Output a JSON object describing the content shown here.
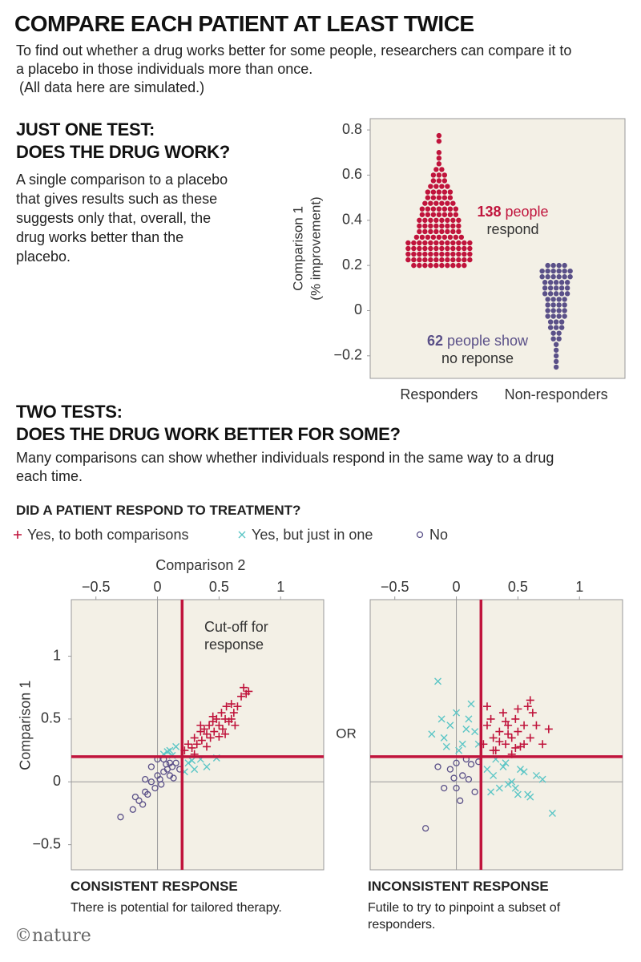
{
  "header": {
    "title": "COMPARE EACH PATIENT AT LEAST TWICE",
    "intro": "To find out whether a drug works better for some people, researchers can compare it to a placebo in those individuals more than once.",
    "note": "(All data here are simulated.)"
  },
  "section_1": {
    "heading": [
      "JUST ONE TEST:",
      "DOES THE DRUG WORK?"
    ],
    "text": "A single comparison to a placebo that gives results such as these suggests only that, overall, the drug works better than the placebo."
  },
  "section_2": {
    "heading": [
      "TWO TESTS:",
      "DOES THE DRUG WORK BETTER FOR SOME?"
    ],
    "text": "Many comparisons can show whether individuals respond in the same way to a drug each time.",
    "legend_title": "DID A PATIENT RESPOND TO TREATMENT?",
    "or_label": "OR"
  },
  "chart_data": [
    {
      "type": "beeswarm",
      "ylabel": [
        "Comparison 1",
        "(% improvement)"
      ],
      "categories": [
        "Responders",
        "Non-responders"
      ],
      "ylim": [
        -0.3,
        0.85
      ],
      "yticks": [
        0.8,
        0.6,
        0.4,
        0.2,
        0,
        {
          "value": -0.2,
          "label": "−0.2"
        }
      ],
      "series": [
        {
          "color": "#c0143c",
          "levels": [
            0.2,
            0.225,
            0.25,
            0.275,
            0.3,
            0.325,
            0.35,
            0.375,
            0.4,
            0.425,
            0.45,
            0.475,
            0.5,
            0.525,
            0.55,
            0.575,
            0.6,
            0.625,
            0.65,
            0.675,
            0.7,
            0.75,
            0.775
          ],
          "counts": [
            10,
            12,
            12,
            12,
            12,
            9,
            8,
            8,
            8,
            7,
            7,
            6,
            5,
            5,
            4,
            3,
            3,
            2,
            1,
            1,
            1,
            1,
            1
          ],
          "annotation": {
            "count": 138,
            "text": [
              "people",
              "respond"
            ]
          }
        },
        {
          "color": "#5a5088",
          "levels": [
            0.2,
            0.175,
            0.15,
            0.125,
            0.1,
            0.075,
            0.05,
            0.025,
            0,
            -0.025,
            -0.05,
            -0.075,
            -0.1,
            -0.125,
            -0.15,
            -0.175,
            -0.2,
            -0.225,
            -0.25
          ],
          "counts": [
            4,
            6,
            6,
            5,
            5,
            5,
            4,
            4,
            4,
            4,
            3,
            3,
            2,
            2,
            1,
            1,
            1,
            1,
            1
          ],
          "annotation": {
            "count": 62,
            "text": [
              "people show",
              "no reponse"
            ]
          }
        }
      ]
    },
    {
      "type": "scatter",
      "xlabel": "Comparison 2",
      "ylabel": "Comparison 1",
      "xlim": [
        -0.7,
        1.35
      ],
      "ylim": [
        -0.7,
        1.45
      ],
      "xticks": [
        {
          "value": -0.5,
          "label": "−0.5"
        },
        0,
        0.5,
        1
      ],
      "yticks": [
        {
          "value": -0.5,
          "label": "−0.5"
        },
        0,
        0.5,
        1
      ],
      "zero_lines": true,
      "cutoff": {
        "value": 0.2,
        "color": "#c0143c",
        "label": [
          "Cut-off for",
          "response"
        ]
      },
      "caption": {
        "title": "CONSISTENT RESPONSE",
        "text": "There is potential for tailored therapy."
      },
      "series": [
        {
          "name": "Yes, to both comparisons",
          "marker": "plus",
          "color": "#c0143c",
          "x": [
            0.22,
            0.25,
            0.28,
            0.3,
            0.32,
            0.35,
            0.36,
            0.38,
            0.4,
            0.42,
            0.43,
            0.45,
            0.46,
            0.48,
            0.5,
            0.52,
            0.53,
            0.55,
            0.56,
            0.58,
            0.6,
            0.62,
            0.63,
            0.65,
            0.68,
            0.7,
            0.72,
            0.74,
            0.3,
            0.4,
            0.5,
            0.45,
            0.35,
            0.55,
            0.6
          ],
          "y": [
            0.25,
            0.3,
            0.27,
            0.35,
            0.3,
            0.4,
            0.33,
            0.42,
            0.38,
            0.45,
            0.35,
            0.48,
            0.4,
            0.5,
            0.45,
            0.55,
            0.42,
            0.5,
            0.6,
            0.48,
            0.62,
            0.55,
            0.45,
            0.6,
            0.68,
            0.75,
            0.7,
            0.72,
            0.22,
            0.28,
            0.36,
            0.52,
            0.45,
            0.38,
            0.5
          ]
        },
        {
          "name": "Yes, but just in one",
          "marker": "x",
          "color": "#5cc6c6",
          "x": [
            0.05,
            0.1,
            0.15,
            0.12,
            0.08,
            0.25,
            0.3,
            0.35,
            0.4,
            0.48,
            0.22,
            0.28
          ],
          "y": [
            0.22,
            0.25,
            0.28,
            0.21,
            0.24,
            0.15,
            0.1,
            0.18,
            0.12,
            0.19,
            0.08,
            0.17
          ]
        },
        {
          "name": "No",
          "marker": "circle",
          "color": "#5a5088",
          "x": [
            -0.3,
            -0.2,
            -0.15,
            -0.12,
            -0.1,
            -0.08,
            -0.05,
            -0.02,
            0,
            0.02,
            0.05,
            0.08,
            0.1,
            0.12,
            0.15,
            0.18,
            -0.05,
            0,
            0.05,
            0.1,
            -0.18,
            0.03,
            0.13,
            -0.1,
            0.07
          ],
          "y": [
            -0.28,
            -0.22,
            -0.15,
            -0.18,
            -0.08,
            -0.1,
            0,
            -0.05,
            0.05,
            0.02,
            0.08,
            0.1,
            0.05,
            0.12,
            0.15,
            0.1,
            0.12,
            0.18,
            0.18,
            0.15,
            -0.12,
            -0.02,
            0.03,
            0.02,
            0.14
          ]
        }
      ]
    },
    {
      "type": "scatter",
      "xlim": [
        -0.7,
        1.35
      ],
      "ylim": [
        -0.7,
        1.45
      ],
      "xticks": [
        {
          "value": -0.5,
          "label": "−0.5"
        },
        0,
        0.5,
        1
      ],
      "zero_lines": true,
      "cutoff": {
        "value": 0.2,
        "color": "#c0143c"
      },
      "caption": {
        "title": "INCONSISTENT RESPONSE",
        "text": "Futile to try to pinpoint a subset of responders."
      },
      "series": [
        {
          "marker": "plus",
          "color": "#c0143c",
          "x": [
            0.22,
            0.25,
            0.28,
            0.3,
            0.32,
            0.35,
            0.38,
            0.4,
            0.42,
            0.45,
            0.48,
            0.5,
            0.52,
            0.55,
            0.58,
            0.6,
            0.62,
            0.65,
            0.7,
            0.75,
            0.25,
            0.3,
            0.35,
            0.4,
            0.45,
            0.5,
            0.55,
            0.6,
            0.42,
            0.48
          ],
          "y": [
            0.3,
            0.45,
            0.5,
            0.35,
            0.25,
            0.4,
            0.55,
            0.3,
            0.45,
            0.35,
            0.5,
            0.4,
            0.28,
            0.45,
            0.6,
            0.35,
            0.55,
            0.45,
            0.3,
            0.42,
            0.6,
            0.25,
            0.32,
            0.48,
            0.22,
            0.58,
            0.3,
            0.65,
            0.38,
            0.27
          ]
        },
        {
          "marker": "x",
          "color": "#5cc6c6",
          "x": [
            -0.15,
            -0.1,
            -0.05,
            0,
            0.05,
            0.1,
            0.15,
            -0.2,
            -0.08,
            0.02,
            0.12,
            -0.12,
            0.08,
            0.18,
            0.25,
            0.3,
            0.35,
            0.4,
            0.45,
            0.5,
            0.55,
            0.6,
            0.65,
            0.7,
            0.78,
            0.28,
            0.38,
            0.48,
            0.58,
            0.32,
            0.42,
            0.52
          ],
          "y": [
            0.8,
            0.35,
            0.45,
            0.55,
            0.3,
            0.5,
            0.4,
            0.38,
            0.28,
            0.25,
            0.62,
            0.5,
            0.42,
            0.3,
            0.1,
            0.05,
            -0.05,
            0.15,
            0,
            -0.1,
            0.08,
            -0.12,
            0.05,
            0.02,
            -0.25,
            -0.08,
            0.12,
            -0.05,
            -0.1,
            0.18,
            -0.02,
            0.1
          ]
        },
        {
          "marker": "circle",
          "color": "#5a5088",
          "x": [
            -0.25,
            -0.1,
            -0.05,
            0,
            0.03,
            0.05,
            0.1,
            0.15,
            -0.15,
            0.08,
            0.12,
            0,
            -0.02,
            0.18
          ],
          "y": [
            -0.37,
            -0.05,
            0.1,
            0.15,
            -0.15,
            0.05,
            0.02,
            -0.08,
            0.12,
            0.18,
            0.14,
            -0.05,
            0.03,
            0.16
          ]
        }
      ]
    }
  ],
  "footer": "©nature"
}
